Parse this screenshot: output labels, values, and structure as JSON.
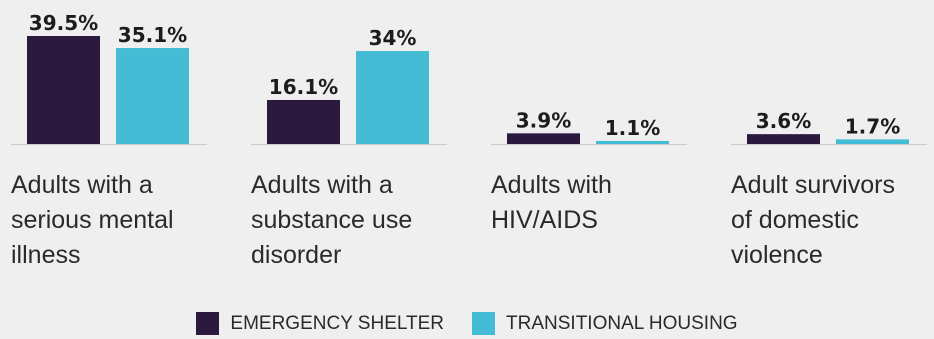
{
  "chart_data": {
    "type": "bar",
    "categories": [
      "Adults with a serious mental illness",
      "Adults with a substance use disorder",
      "Adults with HIV/AIDS",
      "Adult survivors of domestic violence"
    ],
    "category_lines": [
      [
        "Adults with a",
        "serious mental",
        "illness"
      ],
      [
        "Adults with a",
        "substance use",
        "disorder"
      ],
      [
        "Adults with",
        "HIV/AIDS"
      ],
      [
        "Adult survivors",
        "of domestic",
        "violence"
      ]
    ],
    "series": [
      {
        "name": "EMERGENCY SHELTER",
        "color": "#2b1a3d",
        "values": [
          39.5,
          16.1,
          3.9,
          3.6
        ],
        "labels": [
          "39.5%",
          "16.1%",
          "3.9%",
          "3.6%"
        ]
      },
      {
        "name": "TRANSITIONAL HOUSING",
        "color": "#45bcd6",
        "values": [
          35.1,
          34,
          1.1,
          1.7
        ],
        "labels": [
          "35.1%",
          "34%",
          "1.1%",
          "1.7%"
        ]
      }
    ],
    "ylim": [
      0,
      40
    ],
    "legend_position": "bottom-center",
    "grid": false
  }
}
